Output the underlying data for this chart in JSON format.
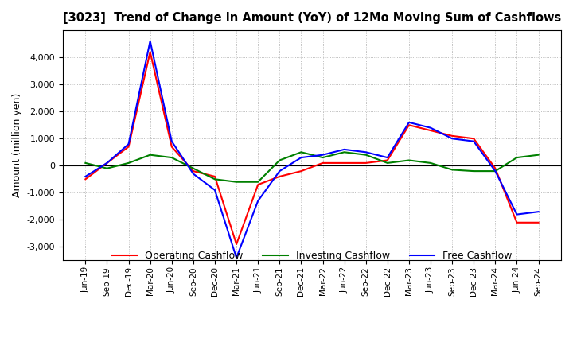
{
  "title": "[3023]  Trend of Change in Amount (YoY) of 12Mo Moving Sum of Cashflows",
  "ylabel": "Amount (million yen)",
  "labels": [
    "Jun-19",
    "Sep-19",
    "Dec-19",
    "Mar-20",
    "Jun-20",
    "Sep-20",
    "Dec-20",
    "Mar-21",
    "Jun-21",
    "Sep-21",
    "Dec-21",
    "Mar-22",
    "Jun-22",
    "Sep-22",
    "Dec-22",
    "Mar-23",
    "Jun-23",
    "Sep-23",
    "Dec-23",
    "Mar-24",
    "Jun-24",
    "Sep-24"
  ],
  "operating": [
    -500,
    100,
    700,
    4200,
    700,
    -200,
    -400,
    -2900,
    -700,
    -400,
    -200,
    100,
    100,
    100,
    200,
    1500,
    1300,
    1100,
    1000,
    -100,
    -2100,
    -2100
  ],
  "investing": [
    100,
    -100,
    100,
    400,
    300,
    -100,
    -500,
    -600,
    -600,
    200,
    500,
    300,
    500,
    400,
    100,
    200,
    100,
    -150,
    -200,
    -200,
    300,
    400
  ],
  "free": [
    -400,
    100,
    800,
    4600,
    900,
    -300,
    -900,
    -3400,
    -1300,
    -200,
    300,
    400,
    600,
    500,
    300,
    1600,
    1400,
    1000,
    900,
    -200,
    -1800,
    -1700
  ],
  "operating_color": "#FF0000",
  "investing_color": "#008000",
  "free_color": "#0000FF",
  "ylim": [
    -3500,
    5000
  ],
  "yticks": [
    -3000,
    -2000,
    -1000,
    0,
    1000,
    2000,
    3000,
    4000
  ],
  "grid_color": "#aaaaaa",
  "bg_color": "#ffffff"
}
